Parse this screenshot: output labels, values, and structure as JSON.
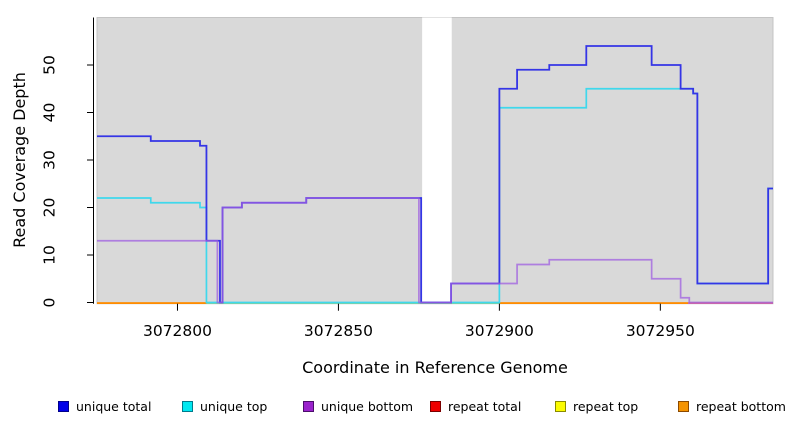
{
  "chart_data": {
    "type": "line",
    "variant": "step-coverage-plot",
    "title": "",
    "xlabel": "Coordinate in Reference Genome",
    "ylabel": "Read Coverage Depth",
    "xlim": [
      3072775,
      3072985
    ],
    "ylim": [
      0,
      60
    ],
    "xticks": [
      3072800,
      3072850,
      3072900,
      3072950
    ],
    "yticks": [
      0,
      10,
      20,
      30,
      40,
      50
    ],
    "grid": false,
    "legend_position": "bottom",
    "panel_background": "#D9D9D9",
    "panel_edge_color": "#C4C4C4",
    "axis_color": "#000000",
    "masked_region": {
      "x1": 3072876,
      "x2": 3072885.2,
      "color": "#FFFFFF"
    },
    "series": [
      {
        "name": "unique total",
        "color": "#3535E6",
        "points": [
          [
            3072775,
            35
          ],
          [
            3072791.7,
            34
          ],
          [
            3072807,
            33
          ],
          [
            3072809,
            13
          ],
          [
            3072813.2,
            0
          ],
          [
            3072814,
            20
          ],
          [
            3072820,
            21
          ],
          [
            3072840,
            22
          ],
          [
            3072875.7,
            0
          ],
          [
            3072885,
            4
          ],
          [
            3072900,
            45
          ],
          [
            3072905.5,
            49
          ],
          [
            3072915.5,
            50
          ],
          [
            3072927,
            54
          ],
          [
            3072947.3,
            50
          ],
          [
            3072956.3,
            45
          ],
          [
            3072960.2,
            44
          ],
          [
            3072961.5,
            4
          ],
          [
            3072983.5,
            24
          ]
        ]
      },
      {
        "name": "unique top",
        "color": "#3FD8EC",
        "points": [
          [
            3072775,
            22
          ],
          [
            3072791.7,
            21
          ],
          [
            3072807,
            20
          ],
          [
            3072809,
            0
          ],
          [
            3072900,
            41
          ],
          [
            3072927,
            45
          ],
          [
            3072960.2,
            44
          ],
          [
            3072961.5,
            4
          ],
          [
            3072983.5,
            24
          ]
        ]
      },
      {
        "name": "unique bottom",
        "color": "#9F5FE0",
        "points": [
          [
            3072775,
            13
          ],
          [
            3072812.4,
            0
          ],
          [
            3072814,
            20
          ],
          [
            3072820,
            21
          ],
          [
            3072840,
            22
          ],
          [
            3072875,
            0
          ],
          [
            3072885,
            4
          ],
          [
            3072905.5,
            8
          ],
          [
            3072915.5,
            9
          ],
          [
            3072947.3,
            5
          ],
          [
            3072956.3,
            1
          ],
          [
            3072959,
            0
          ]
        ]
      },
      {
        "name": "repeat total",
        "color": "#EE0000",
        "points": [
          [
            3072775,
            0
          ]
        ]
      },
      {
        "name": "repeat top",
        "color": "#FBFB00",
        "points": [
          [
            3072775,
            0
          ]
        ]
      },
      {
        "name": "repeat bottom",
        "color": "#FF8C00",
        "points": [
          [
            3072775,
            0
          ]
        ]
      }
    ],
    "zero_line_segments": [
      {
        "x1": 3072775,
        "x2": 3072809,
        "color": "#FF8C00"
      },
      {
        "x1": 3072809,
        "x2": 3072900,
        "color": "#8FCF8F"
      },
      {
        "x1": 3072900,
        "x2": 3072958.6,
        "color": "#FF8C00"
      },
      {
        "x1": 3072958.6,
        "x2": 3072985,
        "color": "#D9689B"
      }
    ]
  },
  "legend": {
    "items": [
      {
        "label": "unique total",
        "fill": "#0000E8",
        "border": "#00008B"
      },
      {
        "label": "unique top",
        "fill": "#00E8F0",
        "border": "#007A8C"
      },
      {
        "label": "unique bottom",
        "fill": "#9A22CC",
        "border": "#4B0E6B"
      },
      {
        "label": "repeat total",
        "fill": "#EE0000",
        "border": "#7A0000"
      },
      {
        "label": "repeat top",
        "fill": "#FBFB00",
        "border": "#8A8B00"
      },
      {
        "label": "repeat bottom",
        "fill": "#F59300",
        "border": "#8C4A00"
      }
    ]
  }
}
